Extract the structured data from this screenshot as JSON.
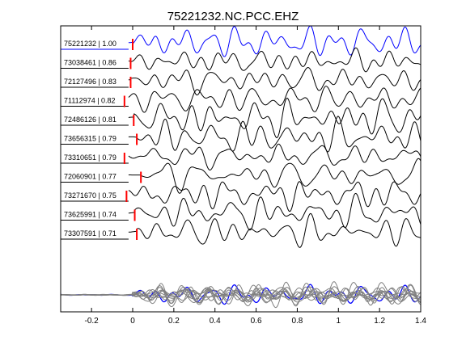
{
  "chart_data": {
    "type": "line",
    "title": "75221232.NC.PCC.EHZ",
    "xlabel": "",
    "ylabel": "",
    "xlim": [
      -0.35,
      1.4
    ],
    "xticks": [
      -0.2,
      0,
      0.2,
      0.4,
      0.6,
      0.8,
      1,
      1.2,
      1.4
    ],
    "xtick_labels": [
      "-0.2",
      "0",
      "0.2",
      "0.4",
      "0.6",
      "0.8",
      "1",
      "1.2",
      "1.4"
    ],
    "grid": false,
    "legend": "none",
    "colors": {
      "reference": "#0000ff",
      "trace": "#000000",
      "pick": "#ff0000",
      "stack": "#808080",
      "stack_reference": "#0000ff"
    },
    "series": [
      {
        "name": "75221232 | 1.00",
        "pick_time": 0.0,
        "reference": true
      },
      {
        "name": "73038461 | 0.86",
        "pick_time": -0.01
      },
      {
        "name": "72127496 | 0.83",
        "pick_time": -0.01
      },
      {
        "name": "71112974 | 0.82",
        "pick_time": -0.04
      },
      {
        "name": "72486126 | 0.81",
        "pick_time": 0.005
      },
      {
        "name": "73656315 | 0.79",
        "pick_time": 0.02
      },
      {
        "name": "73310651 | 0.79",
        "pick_time": -0.04
      },
      {
        "name": "72060901 | 0.77",
        "pick_time": 0.04
      },
      {
        "name": "73271670 | 0.75",
        "pick_time": -0.03
      },
      {
        "name": "73625991 | 0.74",
        "pick_time": 0.01
      },
      {
        "name": "73307591 | 0.71",
        "pick_time": 0.02
      }
    ]
  }
}
